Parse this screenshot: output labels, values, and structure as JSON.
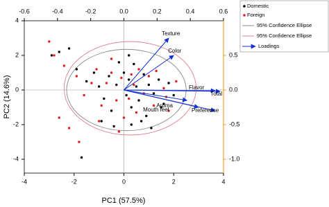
{
  "chart_data": {
    "type": "biplot",
    "x_label": "PC1 (57.5%)",
    "y_label": "PC2 (14.6%)",
    "xlim": [
      -4,
      4
    ],
    "xticks": [
      -4,
      -2,
      0,
      2,
      4
    ],
    "ylim": [
      -4.8,
      4
    ],
    "yticks": [
      -4,
      -2,
      0,
      2,
      4
    ],
    "x2lim": [
      -0.6,
      0.6
    ],
    "x2ticks": [
      -0.6,
      -0.4,
      -0.2,
      {
        "value": 0,
        "label": "0.0"
      },
      0.2,
      0.4,
      0.6
    ],
    "y2lim": [
      -1.2,
      1.0
    ],
    "y2ticks": [
      {
        "value": -1,
        "label": "-1.0"
      },
      -0.5,
      {
        "value": 0,
        "label": "0.0"
      },
      0.5
    ],
    "y2_color": "#f0a030",
    "series": [
      {
        "name": "Domestic",
        "color": "#000000",
        "x": [
          -2.2,
          -2.6,
          -1.9,
          -1.5,
          -1.2,
          -1.0,
          -0.8,
          -0.6,
          -0.5,
          -0.3,
          -0.2,
          0.0,
          0.1,
          0.2,
          0.3,
          0.4,
          0.5,
          0.6,
          0.8,
          0.9,
          1.0,
          1.2,
          1.4,
          1.5,
          1.8,
          2.0,
          -1.7,
          -0.9,
          0.3,
          0.7,
          1.1,
          -2.9,
          -0.4,
          1.6,
          0.2
        ],
        "y": [
          2.4,
          2.2,
          1.2,
          0.5,
          1.0,
          0.2,
          -0.5,
          0.8,
          -1.2,
          0.3,
          1.6,
          1.0,
          -0.3,
          0.6,
          -1.0,
          1.5,
          0.2,
          -0.6,
          0.9,
          -1.5,
          0.3,
          -0.2,
          0.6,
          -1.0,
          0.4,
          -0.3,
          -3.9,
          -1.8,
          -2.0,
          -1.8,
          -2.2,
          2.0,
          -2.1,
          -0.8,
          2.0
        ]
      },
      {
        "name": "Foreign",
        "color": "#e02020",
        "x": [
          -3.0,
          -2.8,
          -2.4,
          -1.9,
          -1.6,
          -1.3,
          -1.1,
          -0.9,
          -0.7,
          -0.5,
          -0.3,
          -0.1,
          0.2,
          0.3,
          0.5,
          0.6,
          0.8,
          1.0,
          1.2,
          1.3,
          1.6,
          1.7,
          2.1,
          -2.2,
          -2.6,
          -1.0,
          -1.8,
          0.0,
          -0.5,
          0.4,
          -0.2,
          1.8
        ],
        "y": [
          2.8,
          2.0,
          1.4,
          0.8,
          -0.3,
          0.4,
          1.2,
          -0.9,
          0.4,
          1.0,
          -0.6,
          0.7,
          -0.5,
          0.9,
          -1.3,
          1.2,
          -0.2,
          0.8,
          -0.9,
          1.1,
          0.1,
          -0.4,
          0.5,
          -2.2,
          -1.6,
          -1.8,
          -3.0,
          -1.6,
          1.8,
          0.3,
          -2.4,
          -1.2
        ]
      }
    ],
    "ellipses": [
      {
        "name": "95% Confidence Ellipse",
        "color": "#888888",
        "center": [
          0.1,
          0.0
        ],
        "radii": [
          2.4,
          2.35
        ]
      },
      {
        "name": "95% Confidence Ellipse",
        "color": "#e08090",
        "center": [
          0.25,
          0.1
        ],
        "radii": [
          2.65,
          2.7
        ]
      }
    ],
    "loadings": {
      "name": "Loadings",
      "color": "#1030d0",
      "labels": [
        "Texture",
        "Color",
        "Flavor",
        "Total",
        "Aroma",
        "Mouth feel",
        "Preference"
      ],
      "x": [
        0.27,
        0.3,
        0.55,
        0.58,
        0.38,
        0.45,
        0.55
      ],
      "y": [
        0.75,
        0.5,
        -0.01,
        -0.02,
        -0.15,
        -0.25,
        -0.3
      ]
    }
  }
}
